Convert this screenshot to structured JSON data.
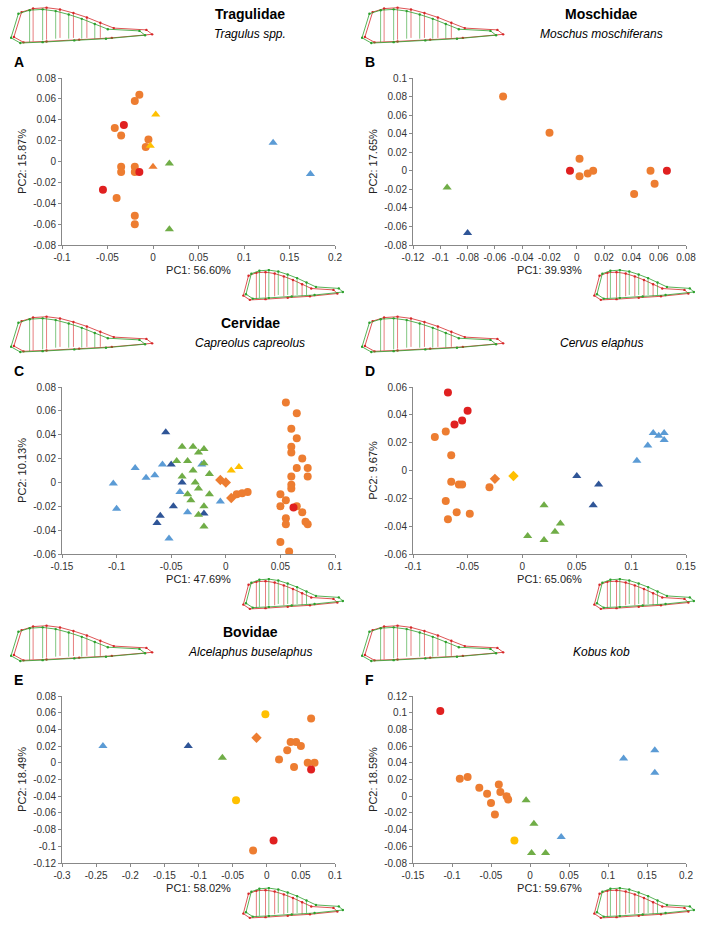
{
  "chart_data": [
    {
      "type": "scatter",
      "title": "Tragulidae",
      "subtitle": "Tragulus spp.",
      "annotations": [
        "A"
      ],
      "x_label": "PC1: 56.60%",
      "y_label": "PC2: 15.87%",
      "xlim": [
        -0.1,
        0.2
      ],
      "xticks": [
        -0.1,
        -0.05,
        0,
        0.05,
        0.1,
        0.15,
        0.2
      ],
      "ylim": [
        -0.08,
        0.08
      ],
      "yticks": [
        -0.08,
        -0.06,
        -0.04,
        -0.02,
        0,
        0.02,
        0.04,
        0.06,
        0.08
      ],
      "grid": false,
      "series": [
        {
          "color": "#ed7d31",
          "marker": "circle",
          "x": [
            -0.015,
            -0.02,
            -0.042,
            -0.035,
            -0.005,
            -0.008,
            -0.035,
            -0.035,
            -0.02,
            -0.02,
            -0.04,
            -0.02,
            -0.02
          ],
          "values": [
            0.064,
            0.058,
            0.032,
            0.025,
            0.021,
            0.014,
            -0.005,
            -0.01,
            -0.005,
            -0.01,
            -0.035,
            -0.052,
            -0.06
          ]
        },
        {
          "color": "#e02020",
          "marker": "circle",
          "x": [
            -0.032,
            -0.015,
            -0.055
          ],
          "values": [
            0.035,
            -0.01,
            -0.027
          ]
        },
        {
          "color": "#ffc000",
          "marker": "triangle-up",
          "x": [
            0.003,
            -0.003
          ],
          "values": [
            0.045,
            0.015
          ]
        },
        {
          "color": "#ed7d31",
          "marker": "triangle-up",
          "x": [
            0.0
          ],
          "values": [
            -0.005
          ]
        },
        {
          "color": "#70ad47",
          "marker": "triangle-up",
          "x": [
            0.018,
            0.018
          ],
          "values": [
            -0.002,
            -0.065
          ]
        },
        {
          "color": "#5b9bd5",
          "marker": "triangle-up",
          "x": [
            0.132,
            0.173
          ],
          "values": [
            0.018,
            -0.012
          ]
        }
      ]
    },
    {
      "type": "scatter",
      "title": "Moschidae",
      "subtitle": "Moschus moschiferans",
      "annotations": [
        "B"
      ],
      "x_label": "PC1: 39.93%",
      "y_label": "PC2: 17.65%",
      "xlim": [
        -0.12,
        0.08
      ],
      "xticks": [
        -0.12,
        -0.1,
        -0.08,
        -0.06,
        -0.04,
        -0.02,
        0,
        0.02,
        0.04,
        0.06,
        0.08
      ],
      "ylim": [
        -0.08,
        0.1
      ],
      "yticks": [
        -0.08,
        -0.06,
        -0.04,
        -0.02,
        0,
        0.02,
        0.04,
        0.06,
        0.08,
        0.1
      ],
      "grid": false,
      "series": [
        {
          "color": "#ed7d31",
          "marker": "circle",
          "x": [
            -0.054,
            -0.02,
            0.002,
            0.002,
            0.008,
            0.012,
            0.042,
            0.054,
            0.057
          ],
          "values": [
            0.08,
            0.041,
            0.013,
            -0.006,
            -0.003,
            0.0,
            -0.025,
            0.0,
            -0.014
          ]
        },
        {
          "color": "#e02020",
          "marker": "circle",
          "x": [
            -0.005,
            0.066
          ],
          "values": [
            0.0,
            0.0
          ]
        },
        {
          "color": "#70ad47",
          "marker": "triangle-up",
          "x": [
            -0.095
          ],
          "values": [
            -0.018
          ]
        },
        {
          "color": "#2f5597",
          "marker": "triangle-up",
          "x": [
            -0.08
          ],
          "values": [
            -0.067
          ]
        }
      ]
    },
    {
      "type": "scatter",
      "title": "Cervidae",
      "subtitle": "Capreolus capreolus",
      "annotations": [
        "C"
      ],
      "x_label": "PC1: 47.69%",
      "y_label": "PC2: 10.13%",
      "xlim": [
        -0.15,
        0.1
      ],
      "xticks": [
        -0.15,
        -0.1,
        -0.05,
        0,
        0.05,
        0.1
      ],
      "ylim": [
        -0.06,
        0.08
      ],
      "yticks": [
        -0.06,
        -0.04,
        -0.02,
        0,
        0.02,
        0.04,
        0.06,
        0.08
      ],
      "grid": false,
      "series": [
        {
          "color": "#5b9bd5",
          "marker": "triangle-up",
          "x": [
            -0.103,
            -0.1,
            -0.083,
            -0.073,
            -0.065,
            -0.058,
            -0.052,
            -0.042,
            -0.035,
            -0.005,
            -0.022
          ],
          "values": [
            -0.001,
            -0.022,
            0.012,
            0.004,
            0.006,
            0.015,
            -0.047,
            -0.008,
            -0.025,
            -0.016,
            0.015
          ]
        },
        {
          "color": "#2f5597",
          "marker": "triangle-up",
          "x": [
            -0.055,
            -0.05,
            -0.06,
            -0.063,
            -0.04,
            -0.048,
            -0.02
          ],
          "values": [
            0.042,
            0.015,
            -0.028,
            -0.034,
            0.0,
            -0.02,
            -0.026
          ]
        },
        {
          "color": "#70ad47",
          "marker": "triangle-up",
          "x": [
            -0.04,
            -0.03,
            -0.025,
            -0.02,
            -0.035,
            -0.045,
            -0.02,
            -0.03,
            -0.015,
            -0.04,
            -0.028,
            -0.025,
            -0.032,
            -0.02,
            -0.025,
            -0.02,
            -0.035,
            -0.015
          ],
          "values": [
            0.03,
            0.03,
            0.025,
            0.028,
            0.018,
            0.018,
            0.016,
            0.01,
            0.007,
            0.005,
            0.0,
            -0.005,
            -0.015,
            -0.02,
            -0.027,
            -0.037,
            -0.01,
            -0.01
          ]
        },
        {
          "color": "#ffc000",
          "marker": "triangle-up",
          "x": [
            0.005,
            0.012
          ],
          "values": [
            0.01,
            0.013
          ]
        },
        {
          "color": "#ed7d31",
          "marker": "diamond",
          "x": [
            -0.005,
            0.005,
            0.0
          ],
          "values": [
            0.002,
            -0.013,
            0.0
          ]
        },
        {
          "color": "#ed7d31",
          "marker": "circle",
          "x": [
            0.01,
            0.02,
            0.015,
            0.055,
            0.065,
            0.06,
            0.065,
            0.06,
            0.06,
            0.07,
            0.075,
            0.075,
            0.065,
            0.06,
            0.06,
            0.06,
            0.05,
            0.055,
            0.065,
            0.07,
            0.075,
            0.073,
            0.055,
            0.055,
            0.05,
            0.058,
            0.05
          ],
          "values": [
            -0.01,
            -0.008,
            -0.009,
            0.067,
            0.058,
            0.045,
            0.037,
            0.03,
            0.025,
            0.02,
            0.012,
            0.005,
            0.012,
            0.005,
            -0.005,
            -0.002,
            -0.01,
            -0.015,
            -0.02,
            -0.025,
            -0.035,
            -0.033,
            -0.03,
            -0.035,
            -0.05,
            -0.058,
            -0.02
          ]
        },
        {
          "color": "#e02020",
          "marker": "circle",
          "x": [
            0.062
          ],
          "values": [
            -0.021
          ]
        }
      ]
    },
    {
      "type": "scatter",
      "subtitle": "Cervus elaphus",
      "annotations": [
        "D"
      ],
      "x_label": "PC1: 65.06%",
      "y_label": "PC2: 9.67%",
      "xlim": [
        -0.1,
        0.15
      ],
      "xticks": [
        -0.1,
        -0.05,
        0,
        0.05,
        0.1,
        0.15
      ],
      "ylim": [
        -0.06,
        0.06
      ],
      "yticks": [
        -0.06,
        -0.04,
        -0.02,
        0,
        0.02,
        0.04,
        0.06
      ],
      "grid": false,
      "series": [
        {
          "color": "#e02020",
          "marker": "circle",
          "x": [
            -0.068,
            -0.062,
            -0.055,
            -0.05
          ],
          "values": [
            0.056,
            0.033,
            0.036,
            0.043
          ]
        },
        {
          "color": "#ed7d31",
          "marker": "circle",
          "x": [
            -0.08,
            -0.07,
            -0.065,
            -0.065,
            -0.07,
            -0.068,
            -0.058,
            -0.06,
            -0.055,
            -0.048,
            -0.03
          ],
          "values": [
            0.024,
            0.028,
            0.011,
            -0.008,
            -0.022,
            -0.035,
            -0.01,
            -0.03,
            -0.01,
            -0.031,
            -0.012
          ]
        },
        {
          "color": "#ed7d31",
          "marker": "diamond",
          "x": [
            -0.025
          ],
          "values": [
            -0.006
          ]
        },
        {
          "color": "#ffc000",
          "marker": "diamond",
          "x": [
            -0.008
          ],
          "values": [
            -0.004
          ]
        },
        {
          "color": "#70ad47",
          "marker": "triangle-up",
          "x": [
            0.005,
            0.02,
            0.02,
            0.03,
            0.035
          ],
          "values": [
            -0.047,
            -0.05,
            -0.025,
            -0.044,
            -0.038
          ]
        },
        {
          "color": "#2f5597",
          "marker": "triangle-up",
          "x": [
            0.05,
            0.065,
            0.07
          ],
          "values": [
            -0.004,
            -0.025,
            -0.01
          ]
        },
        {
          "color": "#5b9bd5",
          "marker": "triangle-up",
          "x": [
            0.105,
            0.115,
            0.125,
            0.13,
            0.13,
            0.12
          ],
          "values": [
            0.007,
            0.018,
            0.025,
            0.027,
            0.022,
            0.027
          ]
        }
      ]
    },
    {
      "type": "scatter",
      "title": "Bovidae",
      "subtitle": "Alcelaphus buselaphus",
      "annotations": [
        "E"
      ],
      "x_label": "PC1: 58.02%",
      "y_label": "PC2: 18.49%",
      "xlim": [
        -0.3,
        0.1
      ],
      "xticks": [
        -0.3,
        -0.25,
        -0.2,
        -0.15,
        -0.1,
        -0.05,
        0,
        0.05,
        0.1
      ],
      "ylim": [
        -0.12,
        0.08
      ],
      "yticks": [
        -0.12,
        -0.1,
        -0.08,
        -0.06,
        -0.04,
        -0.02,
        0,
        0.02,
        0.04,
        0.06,
        0.08
      ],
      "grid": false,
      "series": [
        {
          "color": "#5b9bd5",
          "marker": "triangle-up",
          "x": [
            -0.24
          ],
          "values": [
            0.02
          ]
        },
        {
          "color": "#2f5597",
          "marker": "triangle-up",
          "x": [
            -0.115
          ],
          "values": [
            0.02
          ]
        },
        {
          "color": "#70ad47",
          "marker": "triangle-up",
          "x": [
            -0.065
          ],
          "values": [
            0.006
          ]
        },
        {
          "color": "#ed7d31",
          "marker": "diamond",
          "x": [
            -0.015
          ],
          "values": [
            0.03
          ]
        },
        {
          "color": "#ffc000",
          "marker": "circle",
          "x": [
            -0.002,
            -0.045
          ],
          "values": [
            0.058,
            -0.045
          ]
        },
        {
          "color": "#ed7d31",
          "marker": "circle",
          "x": [
            0.065,
            0.035,
            0.043,
            0.05,
            0.03,
            0.07,
            0.06,
            0.018,
            0.04,
            -0.02
          ],
          "values": [
            0.053,
            0.025,
            0.025,
            0.02,
            0.015,
            0.0,
            0.0,
            0.004,
            -0.005,
            -0.105
          ]
        },
        {
          "color": "#e02020",
          "marker": "circle",
          "x": [
            0.065,
            0.01
          ],
          "values": [
            -0.008,
            -0.093
          ]
        }
      ]
    },
    {
      "type": "scatter",
      "subtitle": "Kobus kob",
      "annotations": [
        "F"
      ],
      "x_label": "PC1: 59.67%",
      "y_label": "PC2: 18.59%",
      "xlim": [
        -0.15,
        0.2
      ],
      "xticks": [
        -0.15,
        -0.1,
        -0.05,
        0,
        0.05,
        0.1,
        0.15,
        0.2
      ],
      "ylim": [
        -0.08,
        0.12
      ],
      "yticks": [
        -0.08,
        -0.06,
        -0.04,
        -0.02,
        0,
        0.02,
        0.04,
        0.06,
        0.08,
        0.1,
        0.12
      ],
      "grid": false,
      "series": [
        {
          "color": "#e02020",
          "marker": "circle",
          "x": [
            -0.115
          ],
          "values": [
            0.102
          ]
        },
        {
          "color": "#ed7d31",
          "marker": "circle",
          "x": [
            -0.09,
            -0.08,
            -0.065,
            -0.055,
            -0.05,
            -0.04,
            -0.038,
            -0.03,
            -0.028,
            -0.045
          ],
          "values": [
            0.021,
            0.023,
            0.01,
            0.003,
            -0.008,
            0.014,
            0.005,
            0.0,
            -0.004,
            -0.022
          ]
        },
        {
          "color": "#ffc000",
          "marker": "circle",
          "x": [
            -0.02
          ],
          "values": [
            -0.053
          ]
        },
        {
          "color": "#70ad47",
          "marker": "triangle-up",
          "x": [
            -0.005,
            0.005,
            0.002,
            0.02
          ],
          "values": [
            -0.005,
            -0.033,
            -0.068,
            -0.068
          ]
        },
        {
          "color": "#5b9bd5",
          "marker": "triangle-up",
          "x": [
            0.04,
            0.12,
            0.16,
            0.16
          ],
          "values": [
            -0.049,
            0.045,
            0.055,
            0.028
          ]
        }
      ]
    }
  ]
}
